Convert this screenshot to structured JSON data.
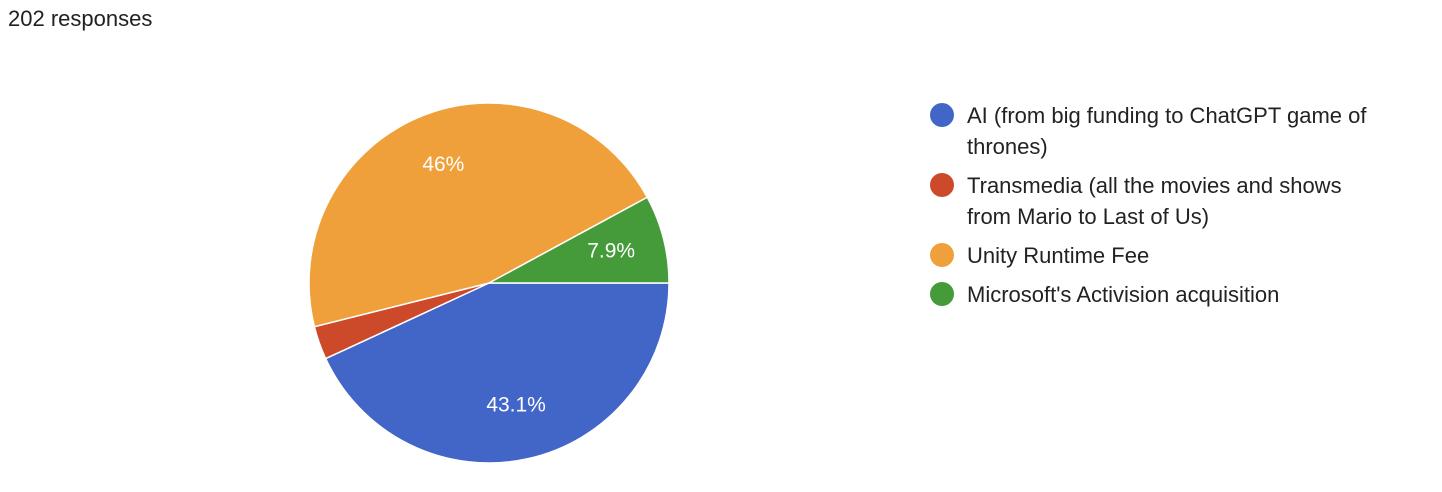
{
  "chart_data": {
    "type": "pie",
    "title": "202 responses",
    "categories": [
      "AI (from big funding to ChatGPT game of thrones)",
      "Transmedia (all the movies and shows from Mario to Last of Us)",
      "Unity Runtime Fee",
      "Microsoft's Activision acquisition"
    ],
    "values": [
      43.1,
      3.0,
      46,
      7.9
    ],
    "value_labels": [
      "43.1%",
      null,
      "46%",
      "7.9%"
    ],
    "colors": [
      "#4265c8",
      "#cc4a2a",
      "#f0a03a",
      "#459a3a"
    ],
    "legend": "right"
  }
}
